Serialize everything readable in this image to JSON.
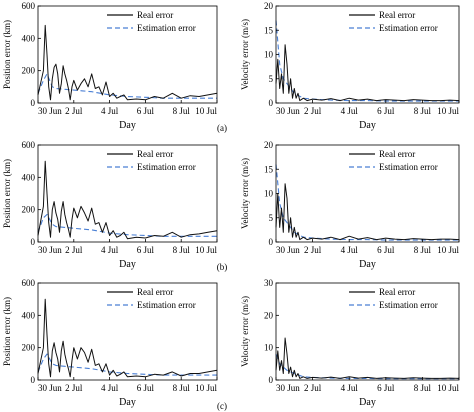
{
  "figure": {
    "tags": [
      "(a)",
      "(b)",
      "(c)"
    ]
  },
  "legend_labels": [
    "Real error",
    "Estimation error"
  ],
  "colors": {
    "real": "#111111",
    "estimation": "#4a7fd4",
    "axis": "#000000",
    "background": "#ffffff"
  },
  "chart_data": [
    {
      "type": "line",
      "panel": "a-position",
      "xlabel": "Day",
      "ylabel": "Position error (km)",
      "xticks": [
        "30 Jun",
        "2 Jul",
        "4 Jul",
        "6 Jul",
        "8 Jul",
        "10 Jul"
      ],
      "xlim": [
        0,
        10
      ],
      "ylim": [
        0,
        600
      ],
      "yticks": [
        0,
        200,
        400,
        600
      ],
      "grid": false,
      "legend": "top-right",
      "series": [
        {
          "name": "Real error",
          "role": "real",
          "x": [
            0,
            0.3,
            0.4,
            0.5,
            0.6,
            0.7,
            0.8,
            0.9,
            1.0,
            1.1,
            1.2,
            1.3,
            1.4,
            1.5,
            1.6,
            1.7,
            1.8,
            1.9,
            2.0,
            2.2,
            2.4,
            2.6,
            2.8,
            3.0,
            3.2,
            3.4,
            3.6,
            3.8,
            4.0,
            4.2,
            4.4,
            4.6,
            4.8,
            5.0,
            5.5,
            6.0,
            6.5,
            7.0,
            7.5,
            8.0,
            8.5,
            9.0,
            9.5,
            10.0
          ],
          "y": [
            50,
            200,
            480,
            300,
            100,
            20,
            150,
            220,
            240,
            180,
            60,
            120,
            230,
            180,
            140,
            90,
            20,
            100,
            140,
            80,
            120,
            150,
            100,
            180,
            90,
            100,
            50,
            130,
            40,
            60,
            30,
            40,
            50,
            20,
            25,
            20,
            40,
            30,
            60,
            30,
            45,
            40,
            50,
            60
          ]
        },
        {
          "name": "Estimation error",
          "role": "estimation",
          "x": [
            0,
            0.3,
            0.5,
            0.8,
            1.0,
            1.5,
            2.0,
            2.5,
            3.0,
            3.5,
            4.0,
            4.5,
            5.0,
            6.0,
            7.0,
            8.0,
            9.0,
            10.0
          ],
          "y": [
            60,
            140,
            180,
            100,
            90,
            85,
            80,
            75,
            70,
            60,
            50,
            45,
            40,
            35,
            30,
            30,
            30,
            30
          ]
        }
      ]
    },
    {
      "type": "line",
      "panel": "a-velocity",
      "xlabel": "Day",
      "ylabel": "Velocity error (m/s)",
      "xticks": [
        "30 Jun",
        "2 Jul",
        "4 Jul",
        "6 Jul",
        "8 Jul",
        "10 Jul"
      ],
      "xlim": [
        0,
        10
      ],
      "ylim": [
        0,
        20
      ],
      "yticks": [
        0,
        5,
        10,
        15,
        20
      ],
      "grid": false,
      "legend": "top-right",
      "series": [
        {
          "name": "Real error",
          "role": "real",
          "x": [
            0,
            0.1,
            0.2,
            0.3,
            0.4,
            0.5,
            0.6,
            0.7,
            0.8,
            0.9,
            1.0,
            1.1,
            1.2,
            1.3,
            1.5,
            1.7,
            2.0,
            2.5,
            3.0,
            3.5,
            4.0,
            4.5,
            5.0,
            5.5,
            6.0,
            6.5,
            7.0,
            7.5,
            8.0,
            8.5,
            9.0,
            9.5,
            10.0
          ],
          "y": [
            4,
            9,
            3,
            6,
            2,
            12,
            8,
            2,
            5,
            1,
            3,
            1,
            2,
            0.5,
            1,
            0.5,
            0.8,
            0.6,
            0.9,
            0.5,
            1,
            0.6,
            0.8,
            0.5,
            0.7,
            0.6,
            0.5,
            0.7,
            0.6,
            0.5,
            0.5,
            0.6,
            0.5
          ]
        },
        {
          "name": "Estimation error",
          "role": "estimation",
          "x": [
            0,
            0.2,
            0.4,
            0.6,
            0.8,
            1.0,
            1.5,
            2.0,
            3.0,
            4.0,
            5.0,
            6.0,
            7.0,
            8.0,
            9.0,
            10.0
          ],
          "y": [
            17,
            8,
            5,
            4,
            3,
            2,
            1,
            0.8,
            0.6,
            0.5,
            0.5,
            0.4,
            0.4,
            0.4,
            0.4,
            0.4
          ]
        }
      ]
    },
    {
      "type": "line",
      "panel": "b-position",
      "xlabel": "Day",
      "ylabel": "Position error (km)",
      "xticks": [
        "30 Jun",
        "2 Jul",
        "4 Jul",
        "6 Jul",
        "8 Jul",
        "10 Jul"
      ],
      "xlim": [
        0,
        10
      ],
      "ylim": [
        0,
        600
      ],
      "yticks": [
        0,
        200,
        400,
        600
      ],
      "grid": false,
      "legend": "top-right",
      "series": [
        {
          "name": "Real error",
          "role": "real",
          "x": [
            0,
            0.3,
            0.4,
            0.5,
            0.6,
            0.7,
            0.8,
            0.9,
            1.0,
            1.1,
            1.2,
            1.3,
            1.4,
            1.5,
            1.6,
            1.7,
            1.8,
            1.9,
            2.0,
            2.2,
            2.4,
            2.6,
            2.8,
            3.0,
            3.2,
            3.4,
            3.6,
            3.8,
            4.0,
            4.2,
            4.4,
            4.6,
            4.8,
            5.0,
            5.5,
            6.0,
            6.5,
            7.0,
            7.5,
            8.0,
            8.5,
            9.0,
            9.5,
            10.0
          ],
          "y": [
            40,
            220,
            500,
            300,
            120,
            30,
            200,
            250,
            180,
            140,
            60,
            190,
            250,
            170,
            120,
            80,
            30,
            140,
            210,
            150,
            220,
            180,
            130,
            210,
            110,
            120,
            60,
            120,
            40,
            70,
            30,
            40,
            60,
            20,
            30,
            25,
            40,
            35,
            60,
            30,
            45,
            50,
            60,
            70
          ]
        },
        {
          "name": "Estimation error",
          "role": "estimation",
          "x": [
            0,
            0.3,
            0.5,
            0.8,
            1.0,
            1.5,
            2.0,
            2.5,
            3.0,
            3.5,
            4.0,
            4.5,
            5.0,
            6.0,
            7.0,
            8.0,
            9.0,
            10.0
          ],
          "y": [
            60,
            150,
            170,
            110,
            95,
            90,
            85,
            80,
            75,
            65,
            55,
            50,
            45,
            40,
            35,
            35,
            35,
            35
          ]
        }
      ]
    },
    {
      "type": "line",
      "panel": "b-velocity",
      "xlabel": "Day",
      "ylabel": "Velocity error (m/s)",
      "xticks": [
        "30 Jun",
        "2 Jul",
        "4 Jul",
        "6 Jul",
        "8 Jul",
        "10 Jul"
      ],
      "xlim": [
        0,
        10
      ],
      "ylim": [
        0,
        20
      ],
      "yticks": [
        0,
        5,
        10,
        15,
        20
      ],
      "grid": false,
      "legend": "top-right",
      "series": [
        {
          "name": "Real error",
          "role": "real",
          "x": [
            0,
            0.1,
            0.2,
            0.3,
            0.4,
            0.5,
            0.6,
            0.7,
            0.8,
            0.9,
            1.0,
            1.1,
            1.2,
            1.3,
            1.5,
            1.7,
            2.0,
            2.5,
            3.0,
            3.5,
            4.0,
            4.5,
            5.0,
            5.5,
            6.0,
            6.5,
            7.0,
            7.5,
            8.0,
            8.5,
            9.0,
            9.5,
            10.0
          ],
          "y": [
            3,
            10,
            3,
            7,
            2,
            12,
            9,
            2,
            5,
            1,
            3,
            1,
            2,
            0.5,
            1,
            0.5,
            0.8,
            0.6,
            1,
            0.5,
            1.2,
            0.6,
            0.9,
            0.5,
            0.8,
            0.6,
            0.5,
            0.7,
            0.6,
            0.5,
            0.6,
            0.6,
            0.5
          ]
        },
        {
          "name": "Estimation error",
          "role": "estimation",
          "x": [
            0,
            0.2,
            0.4,
            0.6,
            0.8,
            1.0,
            1.5,
            2.0,
            3.0,
            4.0,
            5.0,
            6.0,
            7.0,
            8.0,
            9.0,
            10.0
          ],
          "y": [
            16,
            8,
            5,
            4,
            3,
            2,
            1,
            0.8,
            0.6,
            0.5,
            0.5,
            0.4,
            0.4,
            0.4,
            0.4,
            0.4
          ]
        }
      ]
    },
    {
      "type": "line",
      "panel": "c-position",
      "xlabel": "Day",
      "ylabel": "Position error (km)",
      "xticks": [
        "30 Jun",
        "2 Jul",
        "4 Jul",
        "6 Jul",
        "8 Jul",
        "10 Jul"
      ],
      "xlim": [
        0,
        10
      ],
      "ylim": [
        0,
        600
      ],
      "yticks": [
        0,
        200,
        400,
        600
      ],
      "grid": false,
      "legend": "top-right",
      "series": [
        {
          "name": "Real error",
          "role": "real",
          "x": [
            0,
            0.3,
            0.4,
            0.5,
            0.6,
            0.7,
            0.8,
            0.9,
            1.0,
            1.1,
            1.2,
            1.3,
            1.4,
            1.5,
            1.6,
            1.7,
            1.8,
            1.9,
            2.0,
            2.2,
            2.4,
            2.6,
            2.8,
            3.0,
            3.2,
            3.4,
            3.6,
            3.8,
            4.0,
            4.2,
            4.4,
            4.6,
            4.8,
            5.0,
            5.5,
            6.0,
            6.5,
            7.0,
            7.5,
            8.0,
            8.5,
            9.0,
            9.5,
            10.0
          ],
          "y": [
            40,
            200,
            500,
            280,
            100,
            20,
            180,
            230,
            170,
            130,
            50,
            180,
            240,
            160,
            110,
            70,
            20,
            120,
            200,
            130,
            200,
            170,
            110,
            190,
            90,
            100,
            50,
            100,
            30,
            60,
            25,
            35,
            50,
            20,
            25,
            20,
            35,
            30,
            50,
            25,
            40,
            40,
            50,
            60
          ]
        },
        {
          "name": "Estimation error",
          "role": "estimation",
          "x": [
            0,
            0.3,
            0.5,
            0.8,
            1.0,
            1.5,
            2.0,
            2.5,
            3.0,
            3.5,
            4.0,
            4.5,
            5.0,
            6.0,
            7.0,
            8.0,
            9.0,
            10.0
          ],
          "y": [
            50,
            130,
            160,
            100,
            90,
            85,
            80,
            75,
            70,
            60,
            50,
            45,
            40,
            35,
            30,
            30,
            30,
            30
          ]
        }
      ]
    },
    {
      "type": "line",
      "panel": "c-velocity",
      "xlabel": "Day",
      "ylabel": "Velocity error (m/s)",
      "xticks": [
        "30 Jun",
        "2 Jul",
        "4 Jul",
        "6 Jul",
        "8 Jul",
        "10 Jul"
      ],
      "xlim": [
        0,
        10
      ],
      "ylim": [
        0,
        30
      ],
      "yticks": [
        0,
        10,
        20,
        30
      ],
      "grid": false,
      "legend": "top-right",
      "series": [
        {
          "name": "Real error",
          "role": "real",
          "x": [
            0,
            0.1,
            0.2,
            0.3,
            0.4,
            0.5,
            0.6,
            0.7,
            0.8,
            0.9,
            1.0,
            1.1,
            1.2,
            1.3,
            1.5,
            1.7,
            2.0,
            2.5,
            3.0,
            3.5,
            4.0,
            4.5,
            5.0,
            5.5,
            6.0,
            6.5,
            7.0,
            7.5,
            8.0,
            8.5,
            9.0,
            9.5,
            10.0
          ],
          "y": [
            3,
            9,
            3,
            6,
            2,
            13,
            8,
            2,
            4,
            1,
            3,
            1,
            2,
            0.5,
            1,
            0.5,
            0.8,
            0.6,
            0.9,
            0.5,
            1,
            0.6,
            0.8,
            0.5,
            0.7,
            0.6,
            0.5,
            0.7,
            0.6,
            0.5,
            0.5,
            0.6,
            0.5
          ]
        },
        {
          "name": "Estimation error",
          "role": "estimation",
          "x": [
            0,
            0.2,
            0.4,
            0.6,
            0.8,
            1.0,
            1.5,
            2.0,
            3.0,
            4.0,
            5.0,
            6.0,
            7.0,
            8.0,
            9.0,
            10.0
          ],
          "y": [
            8,
            5,
            4,
            3,
            2.5,
            2,
            1,
            0.8,
            0.6,
            0.5,
            0.5,
            0.4,
            0.4,
            0.4,
            0.4,
            0.4
          ]
        }
      ]
    }
  ]
}
